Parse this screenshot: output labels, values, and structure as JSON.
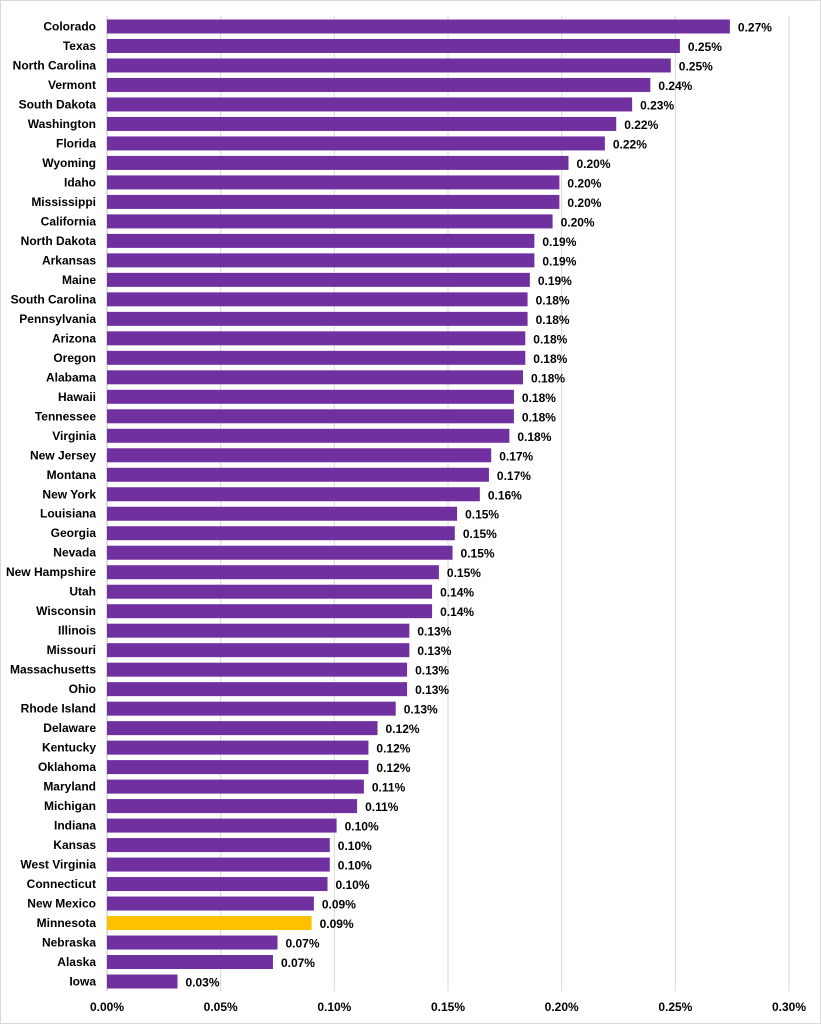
{
  "chart_data": {
    "type": "bar",
    "orientation": "horizontal",
    "categories": [
      "Colorado",
      "Texas",
      "North Carolina",
      "Vermont",
      "South Dakota",
      "Washington",
      "Florida",
      "Wyoming",
      "Idaho",
      "Mississippi",
      "California",
      "North Dakota",
      "Arkansas",
      "Maine",
      "South Carolina",
      "Pennsylvania",
      "Arizona",
      "Oregon",
      "Alabama",
      "Hawaii",
      "Tennessee",
      "Virginia",
      "New Jersey",
      "Montana",
      "New York",
      "Louisiana",
      "Georgia",
      "Nevada",
      "New Hampshire",
      "Utah",
      "Wisconsin",
      "Illinois",
      "Missouri",
      "Massachusetts",
      "Ohio",
      "Rhode Island",
      "Delaware",
      "Kentucky",
      "Oklahoma",
      "Maryland",
      "Michigan",
      "Indiana",
      "Kansas",
      "West Virginia",
      "Connecticut",
      "New Mexico",
      "Minnesota",
      "Nebraska",
      "Alaska",
      "Iowa"
    ],
    "values": [
      0.274,
      0.252,
      0.248,
      0.239,
      0.231,
      0.224,
      0.219,
      0.203,
      0.199,
      0.199,
      0.196,
      0.188,
      0.188,
      0.186,
      0.185,
      0.185,
      0.184,
      0.184,
      0.183,
      0.179,
      0.179,
      0.177,
      0.169,
      0.168,
      0.164,
      0.154,
      0.153,
      0.152,
      0.146,
      0.143,
      0.143,
      0.133,
      0.133,
      0.132,
      0.132,
      0.127,
      0.119,
      0.115,
      0.115,
      0.113,
      0.11,
      0.101,
      0.098,
      0.098,
      0.097,
      0.091,
      0.09,
      0.075,
      0.073,
      0.031
    ],
    "value_labels": [
      "0.27%",
      "0.25%",
      "0.25%",
      "0.24%",
      "0.23%",
      "0.22%",
      "0.22%",
      "0.20%",
      "0.20%",
      "0.20%",
      "0.20%",
      "0.19%",
      "0.19%",
      "0.19%",
      "0.18%",
      "0.18%",
      "0.18%",
      "0.18%",
      "0.18%",
      "0.18%",
      "0.18%",
      "0.18%",
      "0.17%",
      "0.17%",
      "0.16%",
      "0.15%",
      "0.15%",
      "0.15%",
      "0.15%",
      "0.14%",
      "0.14%",
      "0.13%",
      "0.13%",
      "0.13%",
      "0.13%",
      "0.13%",
      "0.12%",
      "0.12%",
      "0.12%",
      "0.11%",
      "0.11%",
      "0.10%",
      "0.10%",
      "0.10%",
      "0.10%",
      "0.09%",
      "0.09%",
      "0.07%",
      "0.07%",
      "0.03%"
    ],
    "xlim": [
      0,
      0.3
    ],
    "x_ticks": [
      0,
      0.05,
      0.1,
      0.15,
      0.2,
      0.25,
      0.3
    ],
    "x_tick_labels": [
      "0.00%",
      "0.05%",
      "0.10%",
      "0.15%",
      "0.20%",
      "0.25%",
      "0.30%"
    ],
    "value_unit": "percent",
    "grid": "vertical",
    "legend": "none",
    "colors": {
      "bar": "#7030A0",
      "highlight": "#FFC000",
      "grid": "#d9d9d9"
    },
    "highlight_category": "Minnesota"
  }
}
